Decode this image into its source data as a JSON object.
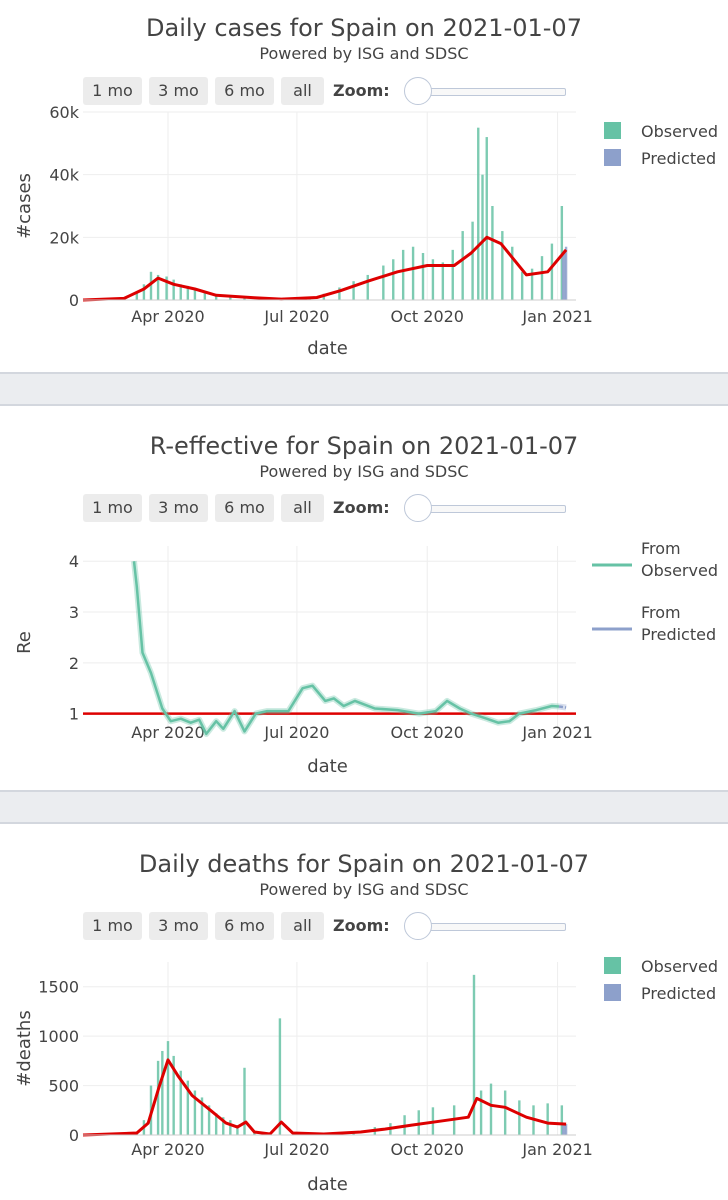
{
  "controls": {
    "buttons": [
      "1 mo",
      "3 mo",
      "6 mo",
      "all"
    ],
    "zoom_label": "Zoom:"
  },
  "colors": {
    "observed": "#66c2a5",
    "predicted": "#8da0cb",
    "trend": "#dd0000",
    "grid": "#eeeeee",
    "axis_text": "#444444"
  },
  "chart_data": [
    {
      "type": "bar",
      "title": "Daily cases for Spain on 2021-01-07",
      "subtitle": "Powered by ISG and SDSC",
      "xlabel": "date",
      "ylabel": "#cases",
      "ylim": [
        0,
        60000
      ],
      "yticks": [
        0,
        20000,
        40000,
        60000
      ],
      "ytick_labels": [
        "0",
        "20k",
        "40k",
        "60k"
      ],
      "xticks": [
        "Apr 2020",
        "Jul 2020",
        "Oct 2020",
        "Jan 2021"
      ],
      "xrange": [
        "2020-02-01",
        "2021-01-14"
      ],
      "legend": [
        "Observed",
        "Predicted"
      ],
      "series": [
        {
          "name": "Observed",
          "points": [
            [
              "2020-03-01",
              200
            ],
            [
              "2020-03-10",
              2500
            ],
            [
              "2020-03-15",
              5000
            ],
            [
              "2020-03-20",
              9000
            ],
            [
              "2020-03-25",
              8000
            ],
            [
              "2020-03-31",
              7500
            ],
            [
              "2020-04-05",
              6500
            ],
            [
              "2020-04-10",
              5000
            ],
            [
              "2020-04-15",
              4500
            ],
            [
              "2020-04-20",
              3500
            ],
            [
              "2020-04-27",
              2500
            ],
            [
              "2020-05-05",
              1500
            ],
            [
              "2020-05-15",
              900
            ],
            [
              "2020-05-25",
              700
            ],
            [
              "2020-06-05",
              500
            ],
            [
              "2020-06-20",
              400
            ],
            [
              "2020-07-01",
              600
            ],
            [
              "2020-07-10",
              900
            ],
            [
              "2020-07-20",
              2000
            ],
            [
              "2020-07-31",
              4000
            ],
            [
              "2020-08-10",
              6000
            ],
            [
              "2020-08-20",
              8000
            ],
            [
              "2020-08-31",
              11000
            ],
            [
              "2020-09-07",
              13000
            ],
            [
              "2020-09-14",
              16000
            ],
            [
              "2020-09-21",
              17000
            ],
            [
              "2020-09-28",
              15000
            ],
            [
              "2020-10-05",
              13000
            ],
            [
              "2020-10-12",
              12000
            ],
            [
              "2020-10-19",
              16000
            ],
            [
              "2020-10-26",
              22000
            ],
            [
              "2020-11-02",
              25000
            ],
            [
              "2020-11-06",
              55000
            ],
            [
              "2020-11-09",
              40000
            ],
            [
              "2020-11-12",
              52000
            ],
            [
              "2020-11-16",
              30000
            ],
            [
              "2020-11-23",
              22000
            ],
            [
              "2020-11-30",
              17000
            ],
            [
              "2020-12-07",
              9000
            ],
            [
              "2020-12-14",
              10000
            ],
            [
              "2020-12-21",
              14000
            ],
            [
              "2020-12-28",
              18000
            ],
            [
              "2021-01-04",
              30000
            ]
          ]
        },
        {
          "name": "Predicted",
          "points": [
            [
              "2021-01-05",
              15000
            ],
            [
              "2021-01-06",
              16000
            ],
            [
              "2021-01-07",
              17000
            ]
          ]
        }
      ],
      "trend": [
        [
          "2020-02-01",
          0
        ],
        [
          "2020-03-01",
          500
        ],
        [
          "2020-03-15",
          3500
        ],
        [
          "2020-03-25",
          7000
        ],
        [
          "2020-04-05",
          5000
        ],
        [
          "2020-04-20",
          3500
        ],
        [
          "2020-05-05",
          1500
        ],
        [
          "2020-06-01",
          700
        ],
        [
          "2020-06-20",
          300
        ],
        [
          "2020-07-15",
          800
        ],
        [
          "2020-08-01",
          3000
        ],
        [
          "2020-08-20",
          6000
        ],
        [
          "2020-09-10",
          9000
        ],
        [
          "2020-10-01",
          11000
        ],
        [
          "2020-10-20",
          11000
        ],
        [
          "2020-11-01",
          15000
        ],
        [
          "2020-11-12",
          20000
        ],
        [
          "2020-11-22",
          18000
        ],
        [
          "2020-12-01",
          13000
        ],
        [
          "2020-12-10",
          8000
        ],
        [
          "2020-12-25",
          9000
        ],
        [
          "2021-01-07",
          16000
        ]
      ]
    },
    {
      "type": "line",
      "title": "R-effective for Spain on 2021-01-07",
      "subtitle": "Powered by ISG and SDSC",
      "xlabel": "date",
      "ylabel": "Re",
      "ylim": [
        0.5,
        4.3
      ],
      "yticks": [
        1,
        2,
        3,
        4
      ],
      "ytick_labels": [
        "1",
        "2",
        "3",
        "4"
      ],
      "xticks": [
        "Apr 2020",
        "Jul 2020",
        "Oct 2020",
        "Jan 2021"
      ],
      "xrange": [
        "2020-02-01",
        "2021-01-14"
      ],
      "legend": [
        "From Observed",
        "From Predicted"
      ],
      "reference_line": 1,
      "series": [
        {
          "name": "From Observed",
          "points": [
            [
              "2020-03-08",
              4.0
            ],
            [
              "2020-03-10",
              3.5
            ],
            [
              "2020-03-14",
              2.2
            ],
            [
              "2020-03-20",
              1.8
            ],
            [
              "2020-03-28",
              1.1
            ],
            [
              "2020-04-03",
              0.85
            ],
            [
              "2020-04-10",
              0.9
            ],
            [
              "2020-04-17",
              0.82
            ],
            [
              "2020-04-23",
              0.88
            ],
            [
              "2020-04-28",
              0.6
            ],
            [
              "2020-05-05",
              0.85
            ],
            [
              "2020-05-10",
              0.7
            ],
            [
              "2020-05-18",
              1.05
            ],
            [
              "2020-05-25",
              0.65
            ],
            [
              "2020-06-02",
              1.0
            ],
            [
              "2020-06-10",
              1.05
            ],
            [
              "2020-06-25",
              1.05
            ],
            [
              "2020-07-05",
              1.5
            ],
            [
              "2020-07-12",
              1.55
            ],
            [
              "2020-07-21",
              1.25
            ],
            [
              "2020-07-27",
              1.3
            ],
            [
              "2020-08-03",
              1.15
            ],
            [
              "2020-08-11",
              1.25
            ],
            [
              "2020-08-25",
              1.1
            ],
            [
              "2020-09-10",
              1.07
            ],
            [
              "2020-09-25",
              1.0
            ],
            [
              "2020-10-07",
              1.05
            ],
            [
              "2020-10-15",
              1.25
            ],
            [
              "2020-10-24",
              1.1
            ],
            [
              "2020-11-01",
              1.0
            ],
            [
              "2020-11-12",
              0.9
            ],
            [
              "2020-11-20",
              0.82
            ],
            [
              "2020-11-28",
              0.85
            ],
            [
              "2020-12-05",
              1.0
            ],
            [
              "2020-12-17",
              1.07
            ],
            [
              "2020-12-28",
              1.15
            ],
            [
              "2021-01-02",
              1.14
            ]
          ]
        },
        {
          "name": "From Predicted",
          "points": [
            [
              "2021-01-02",
              1.14
            ],
            [
              "2021-01-07",
              1.12
            ]
          ]
        }
      ]
    },
    {
      "type": "bar",
      "title": "Daily deaths for Spain on 2021-01-07",
      "subtitle": "Powered by ISG and SDSC",
      "xlabel": "date",
      "ylabel": "#deaths",
      "ylim": [
        0,
        1750
      ],
      "yticks": [
        0,
        500,
        1000,
        1500
      ],
      "ytick_labels": [
        "0",
        "500",
        "1000",
        "1500"
      ],
      "xticks": [
        "Apr 2020",
        "Jul 2020",
        "Oct 2020",
        "Jan 2021"
      ],
      "xrange": [
        "2020-02-01",
        "2021-01-14"
      ],
      "legend": [
        "Observed",
        "Predicted"
      ],
      "series": [
        {
          "name": "Observed",
          "points": [
            [
              "2020-03-10",
              20
            ],
            [
              "2020-03-15",
              150
            ],
            [
              "2020-03-20",
              500
            ],
            [
              "2020-03-25",
              750
            ],
            [
              "2020-03-28",
              850
            ],
            [
              "2020-04-01",
              950
            ],
            [
              "2020-04-05",
              800
            ],
            [
              "2020-04-10",
              650
            ],
            [
              "2020-04-15",
              550
            ],
            [
              "2020-04-20",
              450
            ],
            [
              "2020-04-25",
              380
            ],
            [
              "2020-04-30",
              300
            ],
            [
              "2020-05-05",
              220
            ],
            [
              "2020-05-10",
              180
            ],
            [
              "2020-05-15",
              150
            ],
            [
              "2020-05-20",
              100
            ],
            [
              "2020-05-25",
              680
            ],
            [
              "2020-06-01",
              40
            ],
            [
              "2020-06-19",
              1180
            ],
            [
              "2020-07-15",
              10
            ],
            [
              "2020-08-10",
              30
            ],
            [
              "2020-08-25",
              80
            ],
            [
              "2020-09-05",
              120
            ],
            [
              "2020-09-15",
              200
            ],
            [
              "2020-09-25",
              250
            ],
            [
              "2020-10-05",
              280
            ],
            [
              "2020-10-20",
              300
            ],
            [
              "2020-11-03",
              1620
            ],
            [
              "2020-11-08",
              450
            ],
            [
              "2020-11-15",
              520
            ],
            [
              "2020-11-25",
              450
            ],
            [
              "2020-12-05",
              350
            ],
            [
              "2020-12-15",
              300
            ],
            [
              "2020-12-25",
              320
            ],
            [
              "2021-01-04",
              300
            ]
          ]
        },
        {
          "name": "Predicted",
          "points": [
            [
              "2021-01-05",
              120
            ],
            [
              "2021-01-06",
              120
            ],
            [
              "2021-01-07",
              110
            ]
          ]
        }
      ],
      "trend": [
        [
          "2020-02-01",
          0
        ],
        [
          "2020-03-10",
          20
        ],
        [
          "2020-03-18",
          120
        ],
        [
          "2020-03-26",
          500
        ],
        [
          "2020-04-01",
          760
        ],
        [
          "2020-04-08",
          600
        ],
        [
          "2020-04-18",
          400
        ],
        [
          "2020-05-01",
          250
        ],
        [
          "2020-05-12",
          120
        ],
        [
          "2020-05-20",
          80
        ],
        [
          "2020-05-26",
          130
        ],
        [
          "2020-06-01",
          30
        ],
        [
          "2020-06-12",
          10
        ],
        [
          "2020-06-20",
          130
        ],
        [
          "2020-06-28",
          20
        ],
        [
          "2020-07-20",
          10
        ],
        [
          "2020-08-15",
          30
        ],
        [
          "2020-09-01",
          60
        ],
        [
          "2020-09-20",
          100
        ],
        [
          "2020-10-10",
          140
        ],
        [
          "2020-10-30",
          180
        ],
        [
          "2020-11-05",
          370
        ],
        [
          "2020-11-15",
          300
        ],
        [
          "2020-11-25",
          280
        ],
        [
          "2020-12-10",
          180
        ],
        [
          "2020-12-25",
          120
        ],
        [
          "2021-01-07",
          110
        ]
      ]
    }
  ]
}
